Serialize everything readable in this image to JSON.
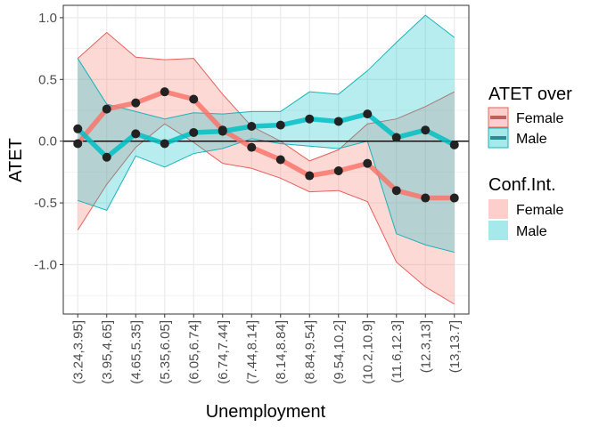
{
  "chart_data": {
    "type": "line",
    "xlabel": "Unemployment",
    "ylabel": "ATET",
    "ylim": [
      -1.4,
      1.1
    ],
    "yticks": [
      1.0,
      0.5,
      0.0,
      -0.5,
      -1.0
    ],
    "ytick_labels": [
      "1.0",
      "0.5",
      "0.0",
      "-0.5",
      "-1.0"
    ],
    "categories": [
      "(3.24,3.95]",
      "(3.95,4.65]",
      "(4.65,5.35]",
      "(5.35,6.05]",
      "(6.05,6.74]",
      "(6.74,7.44]",
      "(7.44,8.14]",
      "(8.14,8.84]",
      "(8.84,9.54]",
      "(9.54,10.2]",
      "(10.2,10.9]",
      "(11.6,12.3]",
      "(12.3,13]",
      "(13,13.7]"
    ],
    "hline": 0,
    "grid": true,
    "legend_placement": "right",
    "series": [
      {
        "name": "Female",
        "color": "#f8766d",
        "line_color": "#e8605a",
        "band_fill": "#f8766d",
        "values": [
          -0.02,
          0.26,
          0.31,
          0.4,
          0.34,
          0.09,
          -0.05,
          -0.15,
          -0.28,
          -0.24,
          -0.18,
          -0.4,
          -0.46,
          -0.46
        ],
        "lower": [
          -0.72,
          -0.35,
          -0.05,
          0.14,
          -0.01,
          -0.18,
          -0.22,
          -0.3,
          -0.41,
          -0.4,
          -0.49,
          -0.98,
          -1.18,
          -1.32
        ],
        "upper": [
          0.67,
          0.88,
          0.68,
          0.66,
          0.67,
          0.38,
          0.12,
          0.0,
          -0.16,
          -0.07,
          0.14,
          0.18,
          0.28,
          0.4
        ]
      },
      {
        "name": "Male",
        "color": "#00bfc4",
        "line_color": "#1ab3b8",
        "band_fill": "#00bfc4",
        "values": [
          0.1,
          -0.13,
          0.06,
          -0.02,
          0.07,
          0.08,
          0.12,
          0.13,
          0.18,
          0.16,
          0.22,
          0.03,
          0.09,
          -0.03
        ],
        "lower": [
          -0.48,
          -0.56,
          -0.12,
          -0.21,
          -0.1,
          -0.06,
          0.02,
          -0.02,
          -0.04,
          -0.06,
          0.0,
          -0.75,
          -0.84,
          -0.9
        ],
        "upper": [
          0.67,
          0.3,
          0.24,
          0.18,
          0.23,
          0.22,
          0.24,
          0.24,
          0.4,
          0.38,
          0.57,
          0.8,
          1.02,
          0.84
        ]
      }
    ],
    "legend": {
      "line_title": "ATET over",
      "band_title": "Conf.Int.",
      "entries": [
        "Female",
        "Male"
      ]
    },
    "colors": {
      "point": "#222222",
      "zero_line": "#000000",
      "grid": "#ebebeb",
      "panel_border": "#333333"
    }
  }
}
